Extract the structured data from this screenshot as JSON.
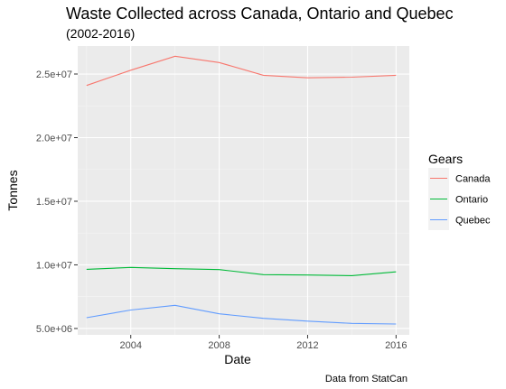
{
  "chart_data": {
    "type": "line",
    "title": "Waste Collected across Canada, Ontario and Quebec",
    "subtitle": "(2002-2016)",
    "xlabel": "Date",
    "ylabel": "Tonnes",
    "caption": "Data from StatCan",
    "x": [
      2002,
      2004,
      2006,
      2008,
      2010,
      2012,
      2014,
      2016
    ],
    "xlim": [
      2001.6,
      2016.6
    ],
    "ylim": [
      4500000,
      27200000
    ],
    "x_ticks": [
      2004,
      2008,
      2012,
      2016
    ],
    "x_tick_labels": [
      "2004",
      "2008",
      "2012",
      "2016"
    ],
    "y_ticks": [
      5000000,
      10000000,
      15000000,
      20000000,
      25000000
    ],
    "y_tick_labels": [
      "5.0e+06",
      "1.0e+07",
      "1.5e+07",
      "2.0e+07",
      "2.5e+07"
    ],
    "grid": true,
    "legend": {
      "title": "Gears",
      "position": "right"
    },
    "series": [
      {
        "name": "Canada",
        "color": "#F8766D",
        "values": [
          24100000,
          25300000,
          26400000,
          25900000,
          24900000,
          24700000,
          24750000,
          24900000
        ]
      },
      {
        "name": "Ontario",
        "color": "#00BA38",
        "values": [
          9650000,
          9800000,
          9700000,
          9630000,
          9230000,
          9200000,
          9150000,
          9450000
        ]
      },
      {
        "name": "Quebec",
        "color": "#619CFF",
        "values": [
          5850000,
          6450000,
          6820000,
          6150000,
          5800000,
          5580000,
          5400000,
          5350000
        ]
      }
    ]
  }
}
